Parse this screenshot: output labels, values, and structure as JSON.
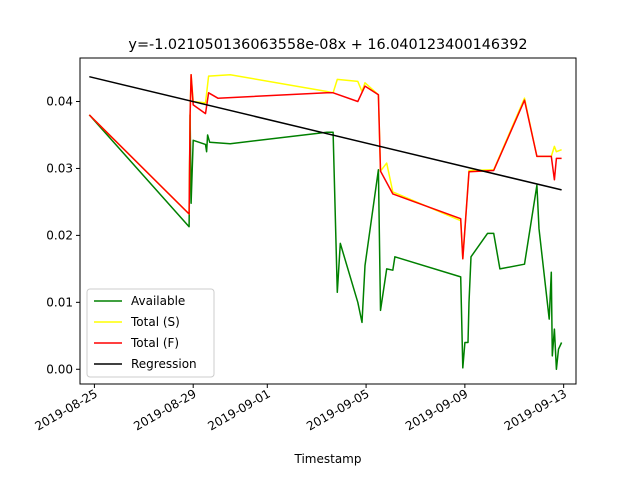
{
  "chart_data": {
    "type": "line",
    "title": "y=-1.021050136063558e-08x + 16.040123400146392",
    "xlabel": "Timestamp",
    "ylabel": "",
    "xlim": [
      "2019-08-24T10:00",
      "2019-09-13T12:00"
    ],
    "ylim": [
      -0.0022,
      0.0465
    ],
    "x_ticks": [
      "2019-08-25",
      "2019-08-29",
      "2019-09-01",
      "2019-09-05",
      "2019-09-09",
      "2019-09-13"
    ],
    "y_ticks": [
      0.0,
      0.01,
      0.02,
      0.03,
      0.04
    ],
    "y_tick_labels": [
      "0.00",
      "0.01",
      "0.02",
      "0.03",
      "0.04"
    ],
    "legend_position": "lower-left",
    "grid": false,
    "series": [
      {
        "name": "Available",
        "color": "#008000",
        "points": [
          [
            "2019-08-24T19:00",
            0.038
          ],
          [
            "2019-08-28T20:00",
            0.0213
          ],
          [
            "2019-08-28T21:00",
            0.038
          ],
          [
            "2019-08-28T22:00",
            0.0248
          ],
          [
            "2019-08-29T00:00",
            0.0342
          ],
          [
            "2019-08-29T12:00",
            0.0336
          ],
          [
            "2019-08-29T13:00",
            0.0325
          ],
          [
            "2019-08-29T14:00",
            0.035
          ],
          [
            "2019-08-29T16:00",
            0.0339
          ],
          [
            "2019-08-30T12:00",
            0.0337
          ],
          [
            "2019-09-03T10:00",
            0.0354
          ],
          [
            "2019-09-03T16:00",
            0.0354
          ],
          [
            "2019-09-03T20:00",
            0.0115
          ],
          [
            "2019-09-03T23:00",
            0.0188
          ],
          [
            "2019-09-04T16:00",
            0.01
          ],
          [
            "2019-09-04T20:00",
            0.007
          ],
          [
            "2019-09-04T23:00",
            0.0155
          ],
          [
            "2019-09-05T12:00",
            0.0298
          ],
          [
            "2019-09-05T14:00",
            0.0088
          ],
          [
            "2019-09-05T20:00",
            0.015
          ],
          [
            "2019-09-06T02:00",
            0.0148
          ],
          [
            "2019-09-06T04:00",
            0.0168
          ],
          [
            "2019-09-08T20:00",
            0.0138
          ],
          [
            "2019-09-08T22:00",
            0.0002
          ],
          [
            "2019-09-09T00:00",
            0.004
          ],
          [
            "2019-09-09T03:00",
            0.004
          ],
          [
            "2019-09-09T04:00",
            0.01
          ],
          [
            "2019-09-09T06:00",
            0.0168
          ],
          [
            "2019-09-09T22:00",
            0.0203
          ],
          [
            "2019-09-10T04:00",
            0.0203
          ],
          [
            "2019-09-10T10:00",
            0.015
          ],
          [
            "2019-09-11T10:00",
            0.0157
          ],
          [
            "2019-09-11T22:00",
            0.0275
          ],
          [
            "2019-09-12T00:00",
            0.021
          ],
          [
            "2019-09-12T10:00",
            0.0075
          ],
          [
            "2019-09-12T12:00",
            0.0145
          ],
          [
            "2019-09-12T13:00",
            0.002
          ],
          [
            "2019-09-12T15:00",
            0.006
          ],
          [
            "2019-09-12T17:00",
            0.0
          ],
          [
            "2019-09-12T19:00",
            0.003
          ],
          [
            "2019-09-12T22:00",
            0.004
          ]
        ]
      },
      {
        "name": "Total (S)",
        "color": "#ffff00",
        "points": [
          [
            "2019-08-24T19:00",
            0.038
          ],
          [
            "2019-08-28T20:00",
            0.0232
          ],
          [
            "2019-08-28T21:00",
            0.038
          ],
          [
            "2019-08-28T22:00",
            0.044
          ],
          [
            "2019-08-29T00:00",
            0.04
          ],
          [
            "2019-08-29T12:00",
            0.0398
          ],
          [
            "2019-08-29T15:00",
            0.0438
          ],
          [
            "2019-08-30T12:00",
            0.044
          ],
          [
            "2019-09-03T10:00",
            0.0415
          ],
          [
            "2019-09-03T16:00",
            0.0413
          ],
          [
            "2019-09-03T20:00",
            0.0433
          ],
          [
            "2019-09-04T16:00",
            0.043
          ],
          [
            "2019-09-04T20:00",
            0.0415
          ],
          [
            "2019-09-04T23:00",
            0.0428
          ],
          [
            "2019-09-05T12:00",
            0.041
          ],
          [
            "2019-09-05T14:00",
            0.0296
          ],
          [
            "2019-09-05T20:00",
            0.0308
          ],
          [
            "2019-09-06T02:00",
            0.0265
          ],
          [
            "2019-09-08T20:00",
            0.0222
          ],
          [
            "2019-09-08T22:00",
            0.0165
          ],
          [
            "2019-09-09T04:00",
            0.0297
          ],
          [
            "2019-09-10T04:00",
            0.0298
          ],
          [
            "2019-09-11T10:00",
            0.0405
          ],
          [
            "2019-09-11T22:00",
            0.0318
          ],
          [
            "2019-09-12T12:00",
            0.0318
          ],
          [
            "2019-09-12T15:00",
            0.0333
          ],
          [
            "2019-09-12T17:00",
            0.0325
          ],
          [
            "2019-09-12T22:00",
            0.0328
          ]
        ]
      },
      {
        "name": "Total (F)",
        "color": "#ff0000",
        "points": [
          [
            "2019-08-24T19:00",
            0.038
          ],
          [
            "2019-08-28T20:00",
            0.0232
          ],
          [
            "2019-08-28T21:00",
            0.038
          ],
          [
            "2019-08-28T22:00",
            0.044
          ],
          [
            "2019-08-29T00:00",
            0.0395
          ],
          [
            "2019-08-29T12:00",
            0.0382
          ],
          [
            "2019-08-29T15:00",
            0.0413
          ],
          [
            "2019-08-30T00:00",
            0.0405
          ],
          [
            "2019-09-03T10:00",
            0.0413
          ],
          [
            "2019-09-03T16:00",
            0.0413
          ],
          [
            "2019-09-04T16:00",
            0.04
          ],
          [
            "2019-09-04T23:00",
            0.0423
          ],
          [
            "2019-09-05T12:00",
            0.041
          ],
          [
            "2019-09-05T14:00",
            0.0296
          ],
          [
            "2019-09-06T02:00",
            0.0262
          ],
          [
            "2019-09-08T20:00",
            0.0225
          ],
          [
            "2019-09-08T22:00",
            0.0165
          ],
          [
            "2019-09-09T04:00",
            0.0295
          ],
          [
            "2019-09-10T04:00",
            0.0297
          ],
          [
            "2019-09-11T10:00",
            0.0402
          ],
          [
            "2019-09-11T22:00",
            0.0318
          ],
          [
            "2019-09-12T12:00",
            0.0318
          ],
          [
            "2019-09-12T15:00",
            0.0283
          ],
          [
            "2019-09-12T17:00",
            0.0315
          ],
          [
            "2019-09-12T22:00",
            0.0315
          ]
        ]
      },
      {
        "name": "Regression",
        "color": "#000000",
        "points": [
          [
            "2019-08-24T19:00",
            0.0437
          ],
          [
            "2019-09-12T22:00",
            0.0268
          ]
        ]
      }
    ]
  }
}
